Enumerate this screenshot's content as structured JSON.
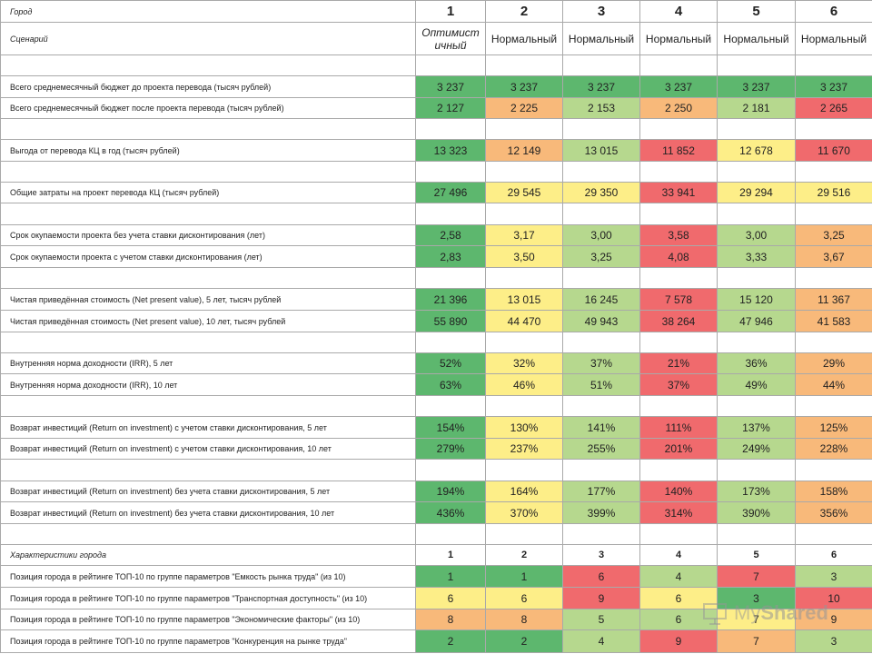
{
  "colors": {
    "dark_green": "#5db76e",
    "light_green": "#b6d88e",
    "yellow": "#fdee88",
    "orange": "#f8b97a",
    "red": "#f06a6d",
    "white": "#ffffff"
  },
  "header": {
    "city_label": "Город",
    "scenario_label": "Сценарий",
    "columns": [
      "1",
      "2",
      "3",
      "4",
      "5",
      "6"
    ],
    "scenarios": [
      "Оптимист ичный",
      "Нормальный",
      "Нормальный",
      "Нормальный",
      "Нормальный",
      "Нормальный"
    ]
  },
  "rows": [
    {
      "label": "",
      "values": [
        "",
        "",
        "",
        "",
        "",
        ""
      ],
      "colors": [
        "white",
        "white",
        "white",
        "white",
        "white",
        "white"
      ]
    },
    {
      "label": "Всего среднемесячный бюджет до проекта перевода (тысяч рублей)",
      "values": [
        "3 237",
        "3 237",
        "3 237",
        "3 237",
        "3 237",
        "3 237"
      ],
      "colors": [
        "dark_green",
        "dark_green",
        "dark_green",
        "dark_green",
        "dark_green",
        "dark_green"
      ]
    },
    {
      "label": "Всего среднемесячный бюджет после проекта перевода (тысяч рублей)",
      "values": [
        "2 127",
        "2 225",
        "2 153",
        "2 250",
        "2 181",
        "2 265"
      ],
      "colors": [
        "dark_green",
        "orange",
        "light_green",
        "orange",
        "light_green",
        "red"
      ]
    },
    {
      "label": "",
      "values": [
        "",
        "",
        "",
        "",
        "",
        ""
      ],
      "colors": [
        "white",
        "white",
        "white",
        "white",
        "white",
        "white"
      ]
    },
    {
      "label": "Выгода от перевода КЦ в год (тысяч рублей)",
      "values": [
        "13 323",
        "12 149",
        "13 015",
        "11 852",
        "12 678",
        "11 670"
      ],
      "colors": [
        "dark_green",
        "orange",
        "light_green",
        "red",
        "yellow",
        "red"
      ]
    },
    {
      "label": "",
      "values": [
        "",
        "",
        "",
        "",
        "",
        ""
      ],
      "colors": [
        "white",
        "white",
        "white",
        "white",
        "white",
        "white"
      ]
    },
    {
      "label": "Общие затраты на проект перевода КЦ (тысяч рублей)",
      "values": [
        "27 496",
        "29 545",
        "29 350",
        "33 941",
        "29 294",
        "29 516"
      ],
      "colors": [
        "dark_green",
        "yellow",
        "yellow",
        "red",
        "yellow",
        "yellow"
      ]
    },
    {
      "label": "",
      "values": [
        "",
        "",
        "",
        "",
        "",
        ""
      ],
      "colors": [
        "white",
        "white",
        "white",
        "white",
        "white",
        "white"
      ]
    },
    {
      "label": "Срок окупаемости проекта без учета ставки дисконтирования (лет)",
      "values": [
        "2,58",
        "3,17",
        "3,00",
        "3,58",
        "3,00",
        "3,25"
      ],
      "colors": [
        "dark_green",
        "yellow",
        "light_green",
        "red",
        "light_green",
        "orange"
      ]
    },
    {
      "label": "Срок окупаемости проекта с учетом ставки дисконтирования (лет)",
      "values": [
        "2,83",
        "3,50",
        "3,25",
        "4,08",
        "3,33",
        "3,67"
      ],
      "colors": [
        "dark_green",
        "yellow",
        "light_green",
        "red",
        "light_green",
        "orange"
      ]
    },
    {
      "label": "",
      "values": [
        "",
        "",
        "",
        "",
        "",
        ""
      ],
      "colors": [
        "white",
        "white",
        "white",
        "white",
        "white",
        "white"
      ]
    },
    {
      "label": "Чистая приведённая стоимость (Net present value), 5 лет, тысяч рублей",
      "values": [
        "21 396",
        "13 015",
        "16 245",
        "7 578",
        "15 120",
        "11 367"
      ],
      "colors": [
        "dark_green",
        "yellow",
        "light_green",
        "red",
        "light_green",
        "orange"
      ]
    },
    {
      "label": "Чистая приведённая стоимость (Net present value), 10 лет, тысяч рублей",
      "values": [
        "55 890",
        "44 470",
        "49 943",
        "38 264",
        "47 946",
        "41 583"
      ],
      "colors": [
        "dark_green",
        "yellow",
        "light_green",
        "red",
        "light_green",
        "orange"
      ]
    },
    {
      "label": "",
      "values": [
        "",
        "",
        "",
        "",
        "",
        ""
      ],
      "colors": [
        "white",
        "white",
        "white",
        "white",
        "white",
        "white"
      ]
    },
    {
      "label": "Внутренняя норма доходности (IRR),  5 лет",
      "values": [
        "52%",
        "32%",
        "37%",
        "21%",
        "36%",
        "29%"
      ],
      "colors": [
        "dark_green",
        "yellow",
        "light_green",
        "red",
        "light_green",
        "orange"
      ]
    },
    {
      "label": "Внутренняя норма доходности (IRR),  10 лет",
      "values": [
        "63%",
        "46%",
        "51%",
        "37%",
        "49%",
        "44%"
      ],
      "colors": [
        "dark_green",
        "yellow",
        "light_green",
        "red",
        "light_green",
        "orange"
      ]
    },
    {
      "label": "",
      "values": [
        "",
        "",
        "",
        "",
        "",
        ""
      ],
      "colors": [
        "white",
        "white",
        "white",
        "white",
        "white",
        "white"
      ]
    },
    {
      "label": "Возврат инвестиций (Return on investment) с учетом ставки дисконтирования, 5 лет",
      "values": [
        "154%",
        "130%",
        "141%",
        "111%",
        "137%",
        "125%"
      ],
      "colors": [
        "dark_green",
        "yellow",
        "light_green",
        "red",
        "light_green",
        "orange"
      ]
    },
    {
      "label": "Возврат инвестиций (Return on investment) с учетом ставки дисконтирования, 10 лет",
      "values": [
        "279%",
        "237%",
        "255%",
        "201%",
        "249%",
        "228%"
      ],
      "colors": [
        "dark_green",
        "yellow",
        "light_green",
        "red",
        "light_green",
        "orange"
      ]
    },
    {
      "label": "",
      "values": [
        "",
        "",
        "",
        "",
        "",
        ""
      ],
      "colors": [
        "white",
        "white",
        "white",
        "white",
        "white",
        "white"
      ]
    },
    {
      "label": "Возврат инвестиций (Return on investment) без учета ставки дисконтирования, 5 лет",
      "values": [
        "194%",
        "164%",
        "177%",
        "140%",
        "173%",
        "158%"
      ],
      "colors": [
        "dark_green",
        "yellow",
        "light_green",
        "red",
        "light_green",
        "orange"
      ]
    },
    {
      "label": "Возврат инвестиций (Return on investment) без учета ставки дисконтирования, 10 лет",
      "values": [
        "436%",
        "370%",
        "399%",
        "314%",
        "390%",
        "356%"
      ],
      "colors": [
        "dark_green",
        "yellow",
        "light_green",
        "red",
        "light_green",
        "orange"
      ]
    },
    {
      "label": "",
      "values": [
        "",
        "",
        "",
        "",
        "",
        ""
      ],
      "colors": [
        "white",
        "white",
        "white",
        "white",
        "white",
        "white"
      ]
    }
  ],
  "city_section": {
    "label": "Характеристики города",
    "columns": [
      "1",
      "2",
      "3",
      "4",
      "5",
      "6"
    ],
    "rows": [
      {
        "label": "Позиция города в рейтинге ТОП-10 по группе параметров \"Емкость рынка труда\" (из 10)",
        "values": [
          "1",
          "1",
          "6",
          "4",
          "7",
          "3"
        ],
        "colors": [
          "dark_green",
          "dark_green",
          "red",
          "light_green",
          "red",
          "light_green"
        ]
      },
      {
        "label": "Позиция города в рейтинге ТОП-10 по группе параметров \"Транспортная доступность\" (из 10)",
        "values": [
          "6",
          "6",
          "9",
          "6",
          "3",
          "10"
        ],
        "colors": [
          "yellow",
          "yellow",
          "red",
          "yellow",
          "dark_green",
          "red"
        ]
      },
      {
        "label": "Позиция города в рейтинге ТОП-10 по группе параметров \"Экономические факторы\" (из 10)",
        "values": [
          "8",
          "8",
          "5",
          "6",
          "7",
          "9"
        ],
        "colors": [
          "orange",
          "orange",
          "light_green",
          "light_green",
          "yellow",
          "orange"
        ]
      },
      {
        "label": "Позиция города в рейтинге ТОП-10 по группе параметров \"Конкуренция на рынке труда\"",
        "values": [
          "2",
          "2",
          "4",
          "9",
          "7",
          "3"
        ],
        "colors": [
          "dark_green",
          "dark_green",
          "light_green",
          "red",
          "orange",
          "light_green"
        ]
      }
    ]
  },
  "watermark": {
    "text_a": "My",
    "text_b": "Shared"
  }
}
